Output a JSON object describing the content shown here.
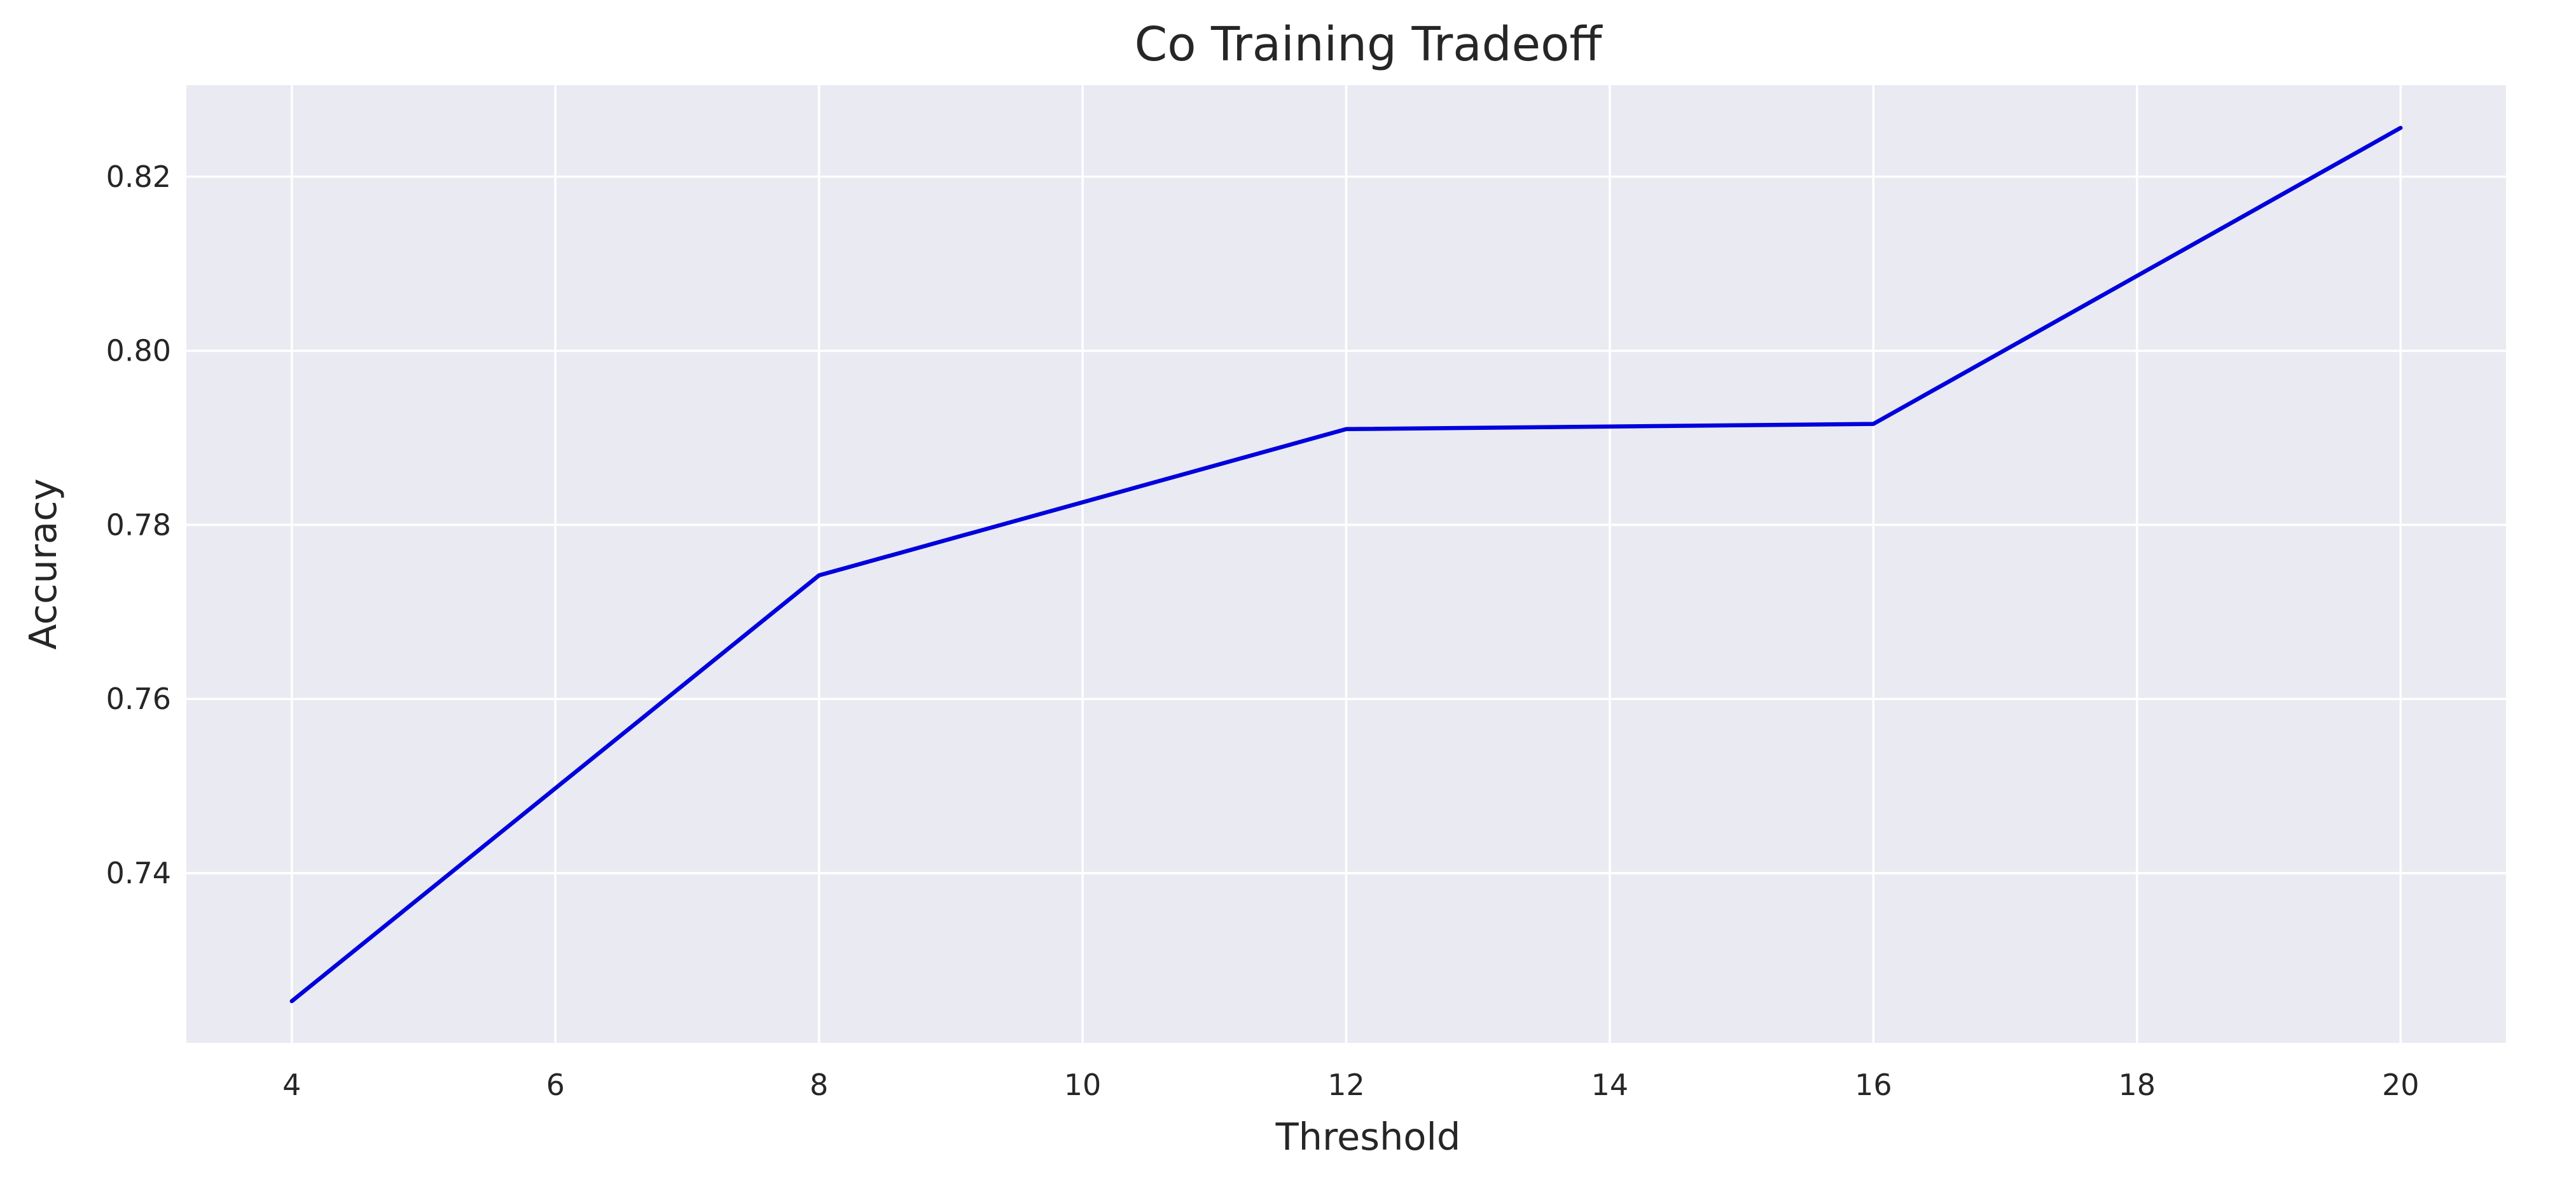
{
  "chart_data": {
    "type": "line",
    "title": "Co Training Tradeoff",
    "xlabel": "Threshold",
    "ylabel": "Accuracy",
    "x": [
      4,
      8,
      12,
      16,
      20
    ],
    "series": [
      {
        "values": [
          0.7253,
          0.7742,
          0.791,
          0.7916,
          0.8256
        ],
        "color": "#0000dd"
      }
    ],
    "xlim": [
      3.2,
      20.8
    ],
    "ylim": [
      0.7205,
      0.8305
    ],
    "xticks": [
      4,
      6,
      8,
      10,
      12,
      14,
      16,
      18,
      20
    ],
    "yticks": [
      0.74,
      0.76,
      0.78,
      0.8,
      0.82
    ],
    "ytick_decimals": 2,
    "grid": true,
    "legend": "none"
  }
}
